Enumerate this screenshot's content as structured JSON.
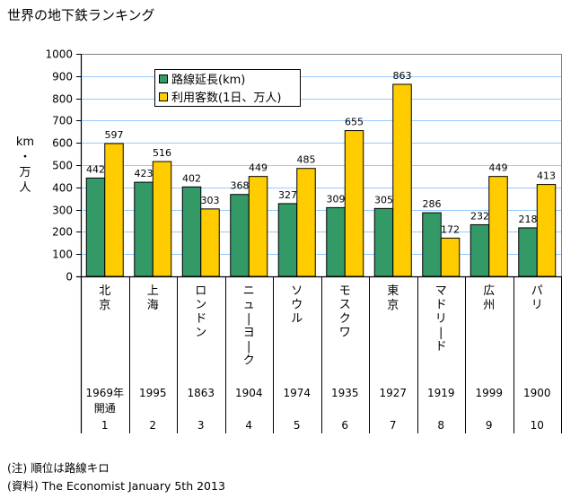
{
  "title": "世界の地下鉄ランキング",
  "notes": {
    "note": "(注) 順位は路線キロ",
    "source": "(資料) The Economist January 5th 2013"
  },
  "chart_data": {
    "type": "bar",
    "title": "世界の地下鉄ランキング",
    "xlabel": "",
    "ylabel": "km・万人",
    "ylabel_chars": [
      "km",
      "・",
      "万",
      "人"
    ],
    "ylim": [
      0,
      1000
    ],
    "yticks": [
      0,
      100,
      200,
      300,
      400,
      500,
      600,
      700,
      800,
      900,
      1000
    ],
    "grid": true,
    "legend_position": "top-left",
    "categories": [
      "北京",
      "上海",
      "ロンドン",
      "ニューヨーク",
      "ソウル",
      "モスクワ",
      "東京",
      "マドリード",
      "広州",
      "パリ"
    ],
    "series": [
      {
        "name": "路線延長(km)",
        "color": "#339966",
        "values": [
          442,
          423,
          402,
          368,
          327,
          309,
          305,
          286,
          232,
          218
        ]
      },
      {
        "name": "利用客数(1日、万人)",
        "color": "#FFCC00",
        "values": [
          597,
          516,
          303,
          449,
          485,
          655,
          863,
          172,
          449,
          413
        ]
      }
    ],
    "table_rows": {
      "opened": [
        "1969年開通",
        "1995",
        "1863",
        "1904",
        "1974",
        "1935",
        "1927",
        "1919",
        "1999",
        "1900"
      ],
      "rank": [
        "1",
        "2",
        "3",
        "4",
        "5",
        "6",
        "7",
        "8",
        "9",
        "10"
      ]
    }
  }
}
